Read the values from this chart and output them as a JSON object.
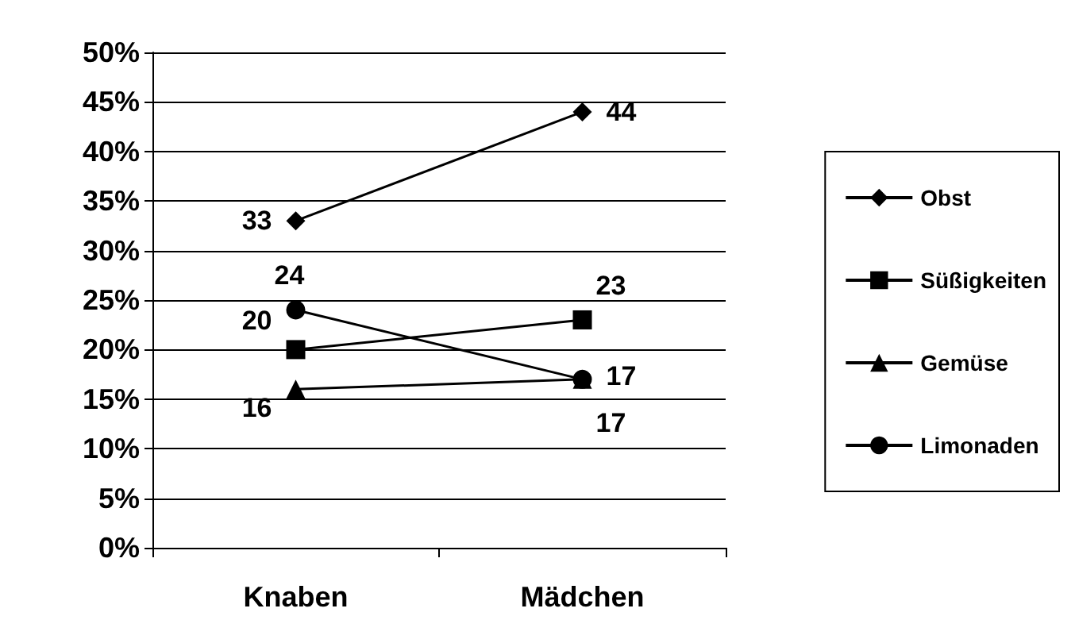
{
  "chart_data": {
    "type": "line",
    "categories": [
      "Knaben",
      "Mädchen"
    ],
    "series": [
      {
        "name": "Obst",
        "color": "#000000",
        "marker": "diamond",
        "values": [
          33,
          44
        ]
      },
      {
        "name": "Süßigkeiten",
        "color": "#000000",
        "marker": "square",
        "values": [
          20,
          23
        ]
      },
      {
        "name": "Gemüse",
        "color": "#000000",
        "marker": "triangle",
        "values": [
          16,
          17
        ]
      },
      {
        "name": "Limonaden",
        "color": "#000000",
        "marker": "circle",
        "values": [
          24,
          17
        ]
      }
    ],
    "ylim": [
      0,
      50
    ],
    "yticks": [
      {
        "value": 0,
        "label": "0%"
      },
      {
        "value": 5,
        "label": "5%"
      },
      {
        "value": 10,
        "label": "10%"
      },
      {
        "value": 15,
        "label": "15%"
      },
      {
        "value": 20,
        "label": "20%"
      },
      {
        "value": 25,
        "label": "25%"
      },
      {
        "value": 30,
        "label": "30%"
      },
      {
        "value": 35,
        "label": "35%"
      },
      {
        "value": 40,
        "label": "40%"
      },
      {
        "value": 45,
        "label": "45%"
      },
      {
        "value": 50,
        "label": "50%"
      }
    ],
    "grid": "y",
    "legend": "right",
    "data_labels": true,
    "line_style": "solid"
  }
}
